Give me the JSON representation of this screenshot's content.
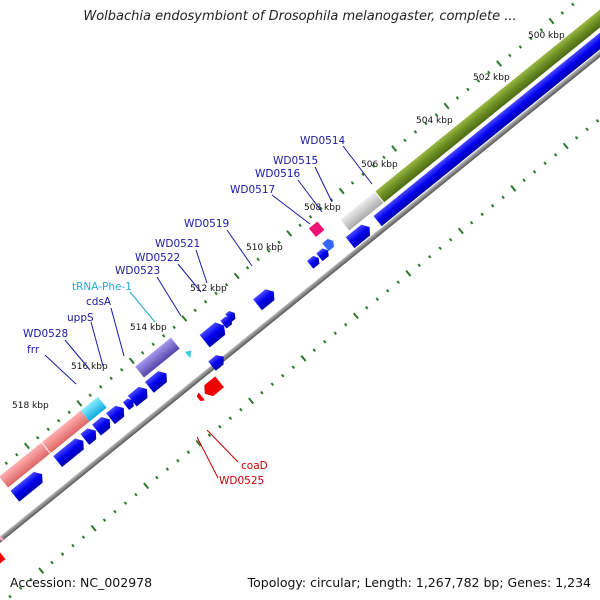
{
  "title": "Wolbachia endosymbiont of Drosophila melanogaster, complete ...",
  "footer": {
    "accession": "Accession: NC_002978",
    "summary": "Topology: circular; Length: 1,267,782 bp; Genes: 1,234"
  },
  "kbp_labels": [
    "500 kbp",
    "502 kbp",
    "504 kbp",
    "506 kbp",
    "508 kbp",
    "510 kbp",
    "512 kbp",
    "514 kbp",
    "516 kbp",
    "518 kbp"
  ],
  "gene_labels_blue": [
    "WD0514",
    "WD0515",
    "WD0516",
    "WD0517",
    "WD0519",
    "WD0521",
    "WD0522",
    "WD0523",
    "cdsA",
    "uppS",
    "WD0528",
    "frr"
  ],
  "gene_label_trna": "tRNA-Phe-1",
  "gene_labels_red": [
    "coaD",
    "WD0525"
  ],
  "colors": {
    "cds_blue": "#0000ee",
    "trna_cyan": "#33ccee",
    "rev_red": "#ee0000",
    "pink": "#ee1177",
    "green_band": "#6b8e23",
    "purple_band": "#7766cc",
    "salmon_band": "#ee8888",
    "grey_band": "#c8c8c8",
    "tick_green": "#2a7a2a",
    "label_blue": "#1a1aa8",
    "label_cyan": "#22aadd",
    "label_red": "#cc0000"
  }
}
